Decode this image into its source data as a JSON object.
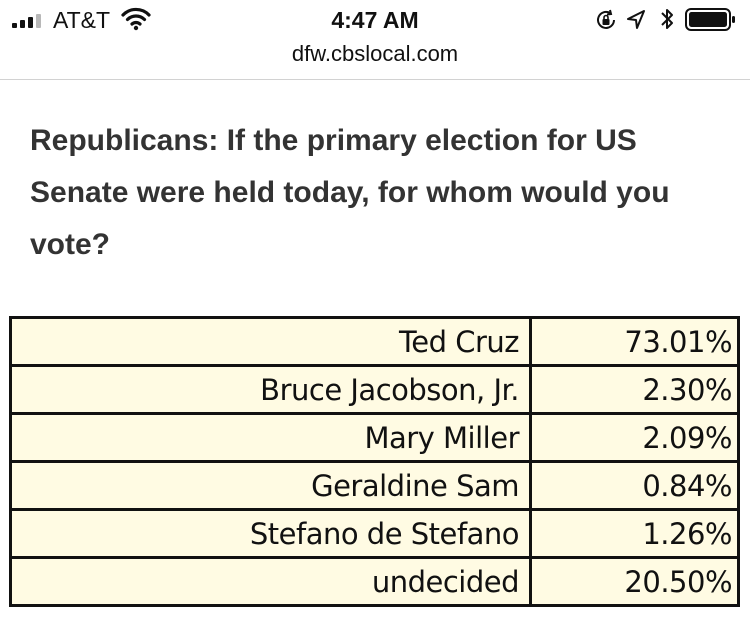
{
  "status_bar": {
    "carrier": "AT&T",
    "time": "4:47 AM",
    "icons": [
      "signal-icon",
      "wifi-icon",
      "rotation-lock-icon",
      "location-arrow-icon",
      "bluetooth-icon",
      "battery-icon"
    ]
  },
  "browser": {
    "url": "dfw.cbslocal.com"
  },
  "article": {
    "question": "Republicans: If the primary election for US Senate were held today, for whom would you vote?"
  },
  "poll": {
    "rows": [
      {
        "candidate": "Ted Cruz",
        "percent": "73.01%"
      },
      {
        "candidate": "Bruce Jacobson, Jr.",
        "percent": "2.30%"
      },
      {
        "candidate": "Mary Miller",
        "percent": "2.09%"
      },
      {
        "candidate": "Geraldine Sam",
        "percent": "0.84%"
      },
      {
        "candidate": "Stefano de Stefano",
        "percent": "1.26%"
      },
      {
        "candidate": "undecided",
        "percent": "20.50%"
      }
    ]
  },
  "colors": {
    "table_background": "#fffbe3",
    "question_text": "#333333"
  }
}
